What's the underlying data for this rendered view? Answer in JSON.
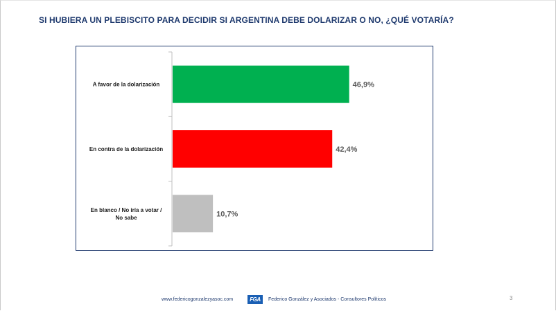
{
  "title": "SI HUBIERA UN PLEBISCITO PARA DECIDIR SI ARGENTINA DEBE DOLARIZAR O NO, ¿QUÉ VOTARÍA?",
  "chart_data": {
    "type": "bar",
    "orientation": "horizontal",
    "title": "SI HUBIERA UN PLEBISCITO PARA DECIDIR SI ARGENTINA DEBE DOLARIZAR O NO, ¿QUÉ VOTARÍA?",
    "categories": [
      [
        "A favor de la dolarización"
      ],
      [
        "En contra de la dolarización"
      ],
      [
        "En blanco / No iría a votar /",
        "No sabe"
      ]
    ],
    "values": [
      46.9,
      42.4,
      10.7
    ],
    "data_labels": [
      "46,9%",
      "42,4%",
      "10,7%"
    ],
    "colors": [
      "#00b050",
      "#ff0000",
      "#bfbfbf"
    ],
    "xlim": [
      0,
      100
    ],
    "xlabel": "",
    "ylabel": "",
    "grid": false,
    "legend": "none"
  },
  "footer": {
    "website": "www.federicogonzalezyasoc.com",
    "logo_text": "FGA",
    "firm": "Federico González y Asociados - Consultores Políticos"
  },
  "page_number": "3"
}
